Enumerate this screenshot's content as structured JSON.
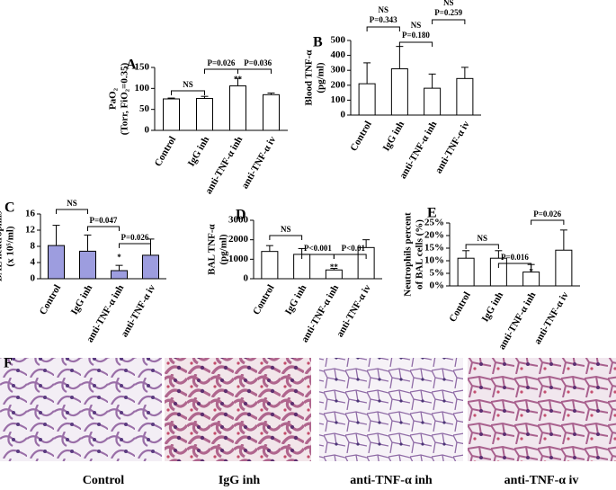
{
  "chart_data": [
    {
      "type": "bar",
      "panel": "A",
      "ylabel": [
        "PaO₂",
        "(Torr, FiO₂=0.35)"
      ],
      "categories": [
        "Control",
        "IgG inh",
        "anti-TNF-α inh",
        "anti-TNF-α iv"
      ],
      "values": [
        75,
        76,
        106,
        85
      ],
      "errors": [
        2,
        5,
        18,
        4
      ],
      "color": "#ffffff",
      "ylim": [
        0,
        150
      ],
      "yticks": [
        0,
        50,
        100,
        150
      ],
      "annotations": [
        "NS",
        "P=0.026",
        "P=0.036",
        "**"
      ]
    },
    {
      "type": "bar",
      "panel": "B",
      "ylabel": [
        "Blood TNF-α",
        "(pg/ml)"
      ],
      "categories": [
        "Control",
        "IgG inh",
        "anti-TNF-α inh",
        "anti-TNF-α iv"
      ],
      "values": [
        210,
        310,
        180,
        245
      ],
      "errors": [
        140,
        150,
        95,
        75
      ],
      "color": "#ffffff",
      "ylim": [
        0,
        500
      ],
      "yticks": [
        0,
        100,
        200,
        300,
        400,
        500
      ],
      "annotations": [
        "NS",
        "P=0.343",
        "NS",
        "P=0.180",
        "NS",
        "P=0.259"
      ]
    },
    {
      "type": "bar",
      "panel": "C",
      "ylabel": [
        "BAL neutrophils",
        "(x 10⁵/ml)"
      ],
      "categories": [
        "Control",
        "IgG inh",
        "anti-TNF-α inh",
        "anti-TNF-α iv"
      ],
      "values": [
        8.2,
        6.8,
        2.0,
        5.8
      ],
      "errors": [
        5,
        4,
        1.3,
        4
      ],
      "color": "#9d9ddf",
      "ylim": [
        0,
        16
      ],
      "yticks": [
        0,
        4,
        8,
        12,
        16
      ],
      "annotations": [
        "NS",
        "P=0.047",
        "*",
        "P=0.026"
      ]
    },
    {
      "type": "bar",
      "panel": "D",
      "ylabel": [
        "BAL TNF-α",
        "(pg/ml)"
      ],
      "categories": [
        "Control",
        "IgG inh",
        "anti-TNF-α inh",
        "anti-TNF-α iv"
      ],
      "values": [
        1400,
        1250,
        450,
        1600
      ],
      "errors": [
        300,
        300,
        80,
        400
      ],
      "color": "#ffffff",
      "ylim": [
        0,
        3000
      ],
      "yticks": [
        0,
        1000,
        2000,
        3000
      ],
      "annotations": [
        "NS",
        "P<0.001",
        "**",
        "P<0.01"
      ]
    },
    {
      "type": "bar",
      "panel": "E",
      "ylabel": [
        "Neutrophils percent",
        "of BAL cells (%)"
      ],
      "categories": [
        "Control",
        "IgG inh",
        "anti-TNF-α inh",
        "anti-TNF-α iv"
      ],
      "values": [
        11,
        11,
        5.5,
        14.2
      ],
      "errors": [
        3,
        3,
        3,
        8
      ],
      "color": "#ffffff",
      "ylim": [
        0,
        25
      ],
      "yticks": [
        {
          "value": 0,
          "label": "0%"
        },
        {
          "value": 5,
          "label": "5%"
        },
        {
          "value": 10,
          "label": "10%"
        },
        {
          "value": 15,
          "label": "15%"
        },
        {
          "value": 20,
          "label": "20%"
        },
        {
          "value": 25,
          "label": "25%"
        }
      ],
      "annotations": [
        "NS",
        "P=0.016",
        "*",
        "P=0.026"
      ]
    }
  ],
  "histology": {
    "panel": "F",
    "captions": [
      "Control",
      "IgG inh",
      "anti-TNF-α inh",
      "anti-TNF-α iv"
    ]
  }
}
